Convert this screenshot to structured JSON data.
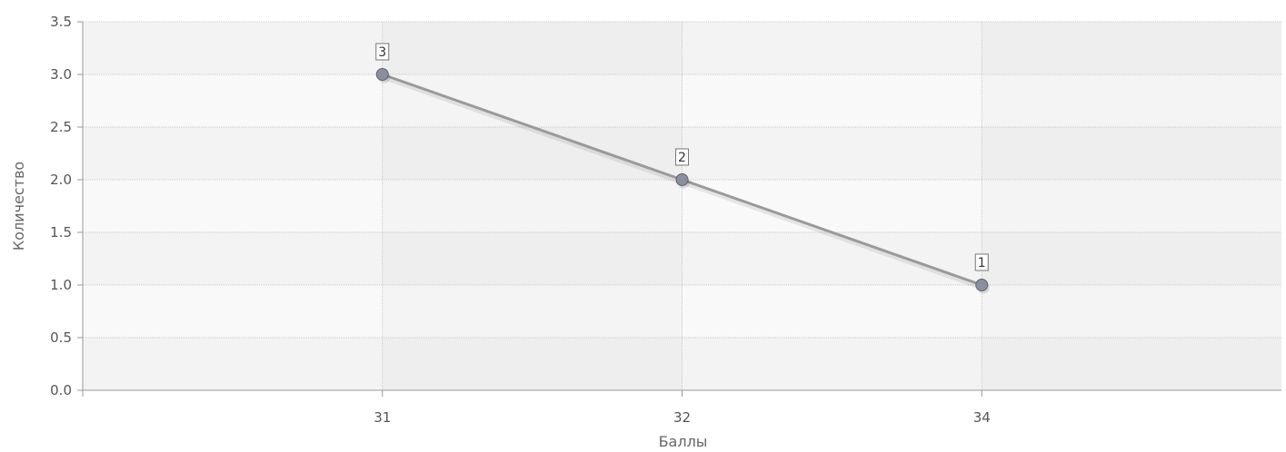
{
  "chart_data": {
    "type": "line",
    "categories": [
      "31",
      "32",
      "34"
    ],
    "series": [
      {
        "values": [
          3,
          2,
          1
        ],
        "color": "#9a9a9a",
        "marker_color": "#8a8f9e"
      }
    ],
    "data_labels": [
      "3",
      "2",
      "1"
    ],
    "xlabel": "Баллы",
    "ylabel": "Количество",
    "ylim": [
      0,
      3.5
    ],
    "yticks": [
      "0.0",
      "0.5",
      "1.0",
      "1.5",
      "2.0",
      "2.5",
      "3.0",
      "3.5"
    ],
    "grid": true,
    "band_colors": [
      "#f3f3f3",
      "#f9f9f9"
    ]
  }
}
